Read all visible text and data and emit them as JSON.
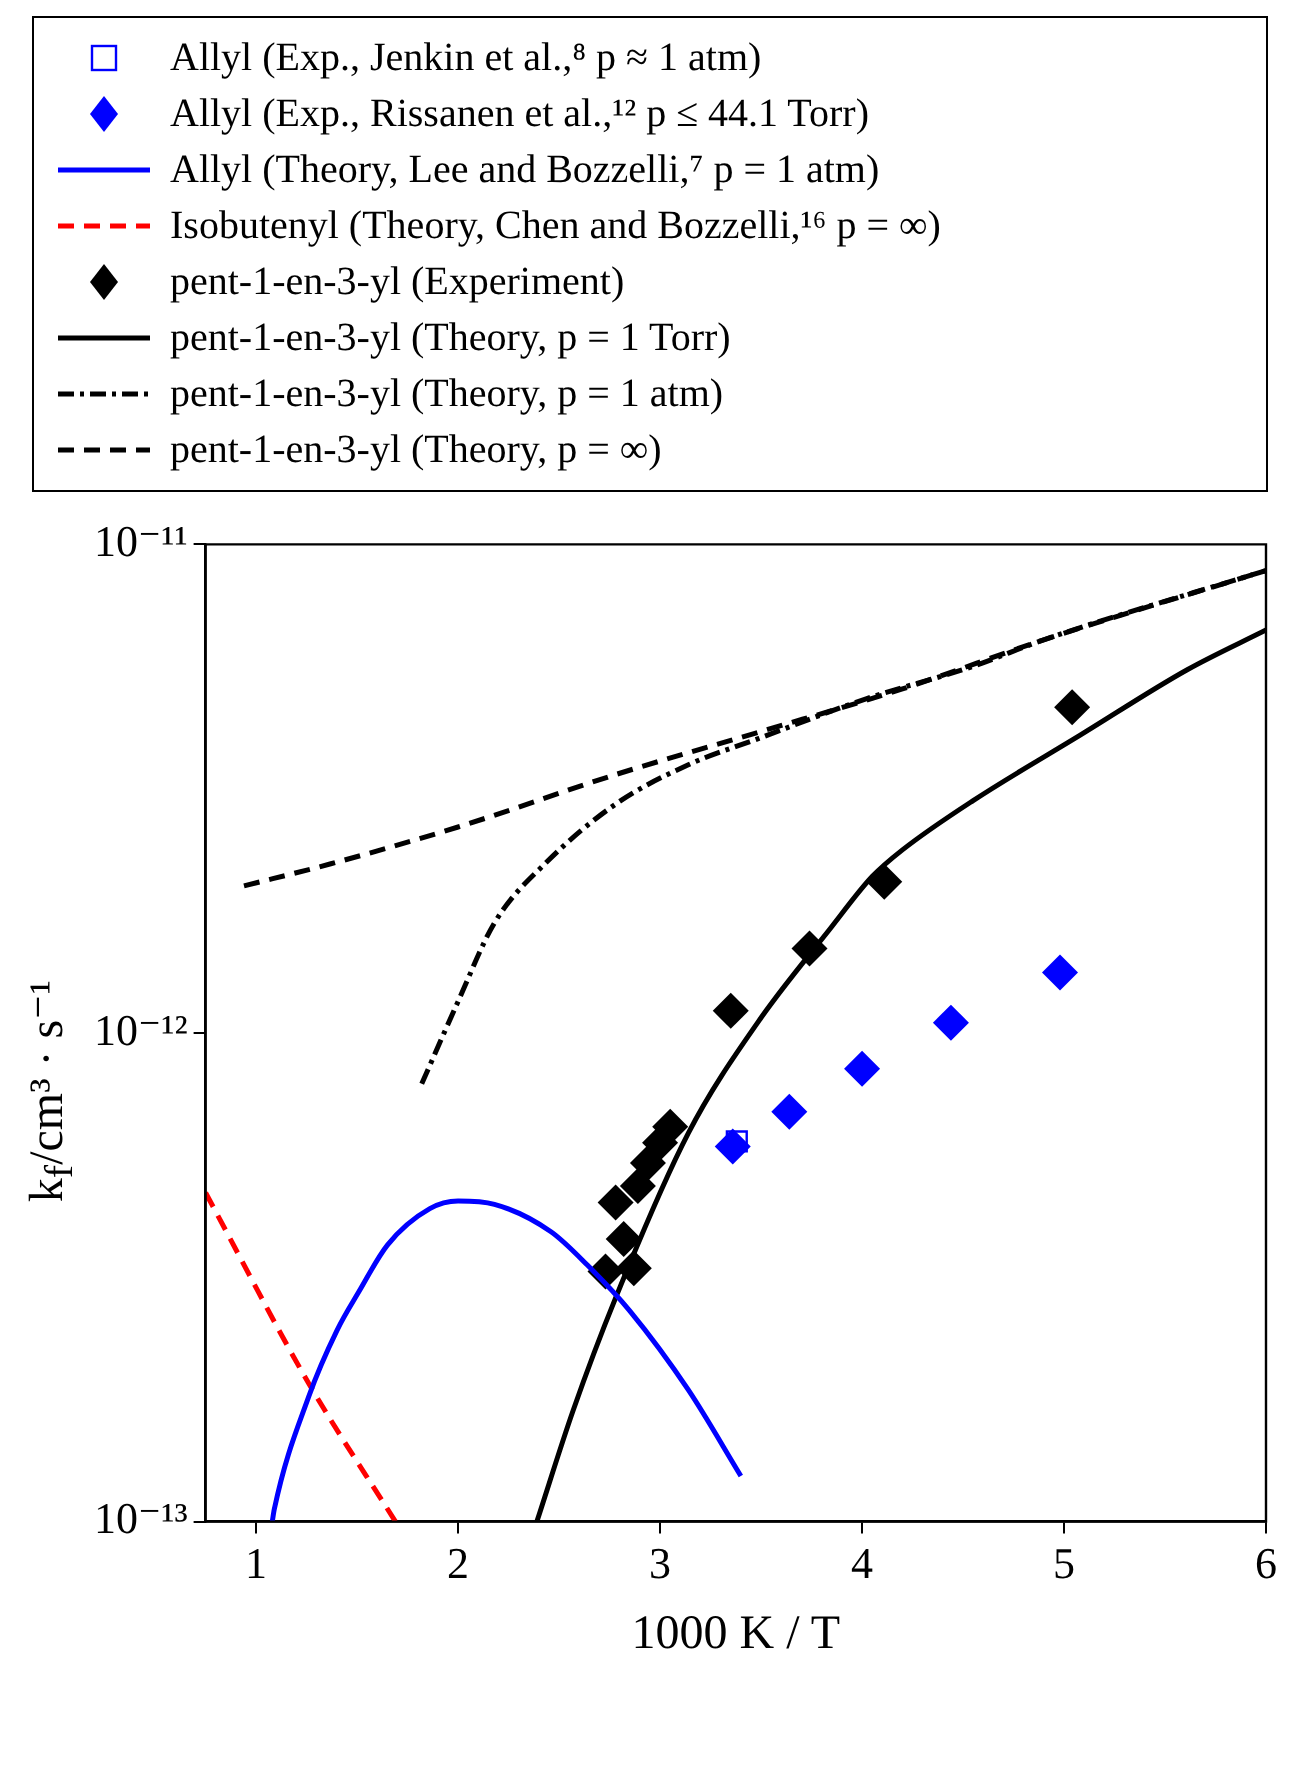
{
  "chart_data": {
    "type": "line",
    "xlabel": "1000 K / T",
    "ylabel": "k$_{f}$/cm³ · s⁻¹",
    "xlim": [
      0.75,
      6
    ],
    "xticks": [
      1,
      2,
      3,
      4,
      5,
      6
    ],
    "ylim": [
      1e-13,
      1e-11
    ],
    "yticks": [
      {
        "value": 1e-13,
        "label": "10⁻¹³"
      },
      {
        "value": 1e-12,
        "label": "10⁻¹²"
      },
      {
        "value": 1e-11,
        "label": "10⁻¹¹"
      }
    ],
    "log": "y",
    "grid": false,
    "legend": "top",
    "series": [
      {
        "name": "Allyl (Exp., Jenkin et al.,⁸ p ≈ 1 atm)",
        "type": "scatter",
        "marker": "square",
        "color": "#0000ff",
        "x": [
          3.38
        ],
        "values": [
          6e-13
        ]
      },
      {
        "name": "Allyl (Exp., Rissanen et al.,¹² p ≤ 44.1 Torr)",
        "type": "scatter",
        "marker": "diamond",
        "color": "#0000ff",
        "x": [
          3.36,
          3.64,
          4.0,
          4.44,
          4.98
        ],
        "values": [
          5.86e-13,
          6.9e-13,
          8.45e-13,
          1.05e-12,
          1.33e-12
        ]
      },
      {
        "name": "Allyl (Theory, Lee and Bozzelli,⁷ p = 1 atm)",
        "line_style": "solid",
        "color": "#0000ff",
        "x": [
          1.08,
          1.09,
          1.26,
          1.4,
          1.51,
          1.65,
          1.86,
          2.0,
          2.18,
          2.46,
          2.64,
          2.85,
          3.14,
          3.4
        ],
        "values": [
          1e-13,
          1.06e-13,
          1.8e-13,
          2.46e-13,
          2.96e-13,
          3.68e-13,
          4.37e-13,
          4.53e-13,
          4.46e-13,
          3.92e-13,
          3.35e-13,
          2.7e-13,
          1.86e-13,
          1.24e-13
        ]
      },
      {
        "name": "Isobutenyl (Theory, Chen and Bozzelli,¹⁶ p = ∞)",
        "line_style": "dashed",
        "color": "#ff0000",
        "x": [
          0.75,
          1.26,
          1.69
        ],
        "values": [
          4.71e-13,
          1.92e-13,
          1e-13
        ]
      },
      {
        "name": "pent-1-en-3-yl (Experiment)",
        "type": "scatter",
        "marker": "diamond",
        "color": "#000000",
        "x": [
          2.73,
          2.78,
          2.82,
          2.87,
          2.89,
          2.94,
          3.0,
          3.05,
          3.35,
          3.74,
          4.11,
          5.04
        ],
        "values": [
          3.25e-13,
          4.5e-13,
          3.79e-13,
          3.3e-13,
          4.86e-13,
          5.42e-13,
          5.96e-13,
          6.43e-13,
          1.11e-12,
          1.49e-12,
          2.04e-12,
          4.64e-12
        ]
      },
      {
        "name": "pent-1-en-3-yl (Theory, p = 1 Torr)",
        "line_style": "solid",
        "color": "#000000",
        "x": [
          2.39,
          2.57,
          2.78,
          3.14,
          3.49,
          3.84,
          4.05,
          4.2,
          4.55,
          5.08,
          5.61,
          6.0
        ],
        "values": [
          1e-13,
          1.69e-13,
          2.87e-13,
          6.24e-13,
          1.06e-12,
          1.63e-12,
          2.09e-12,
          2.37e-12,
          2.99e-12,
          4.07e-12,
          5.54e-12,
          6.68e-12
        ]
      },
      {
        "name": "pent-1-en-3-yl (Theory, p = 1 atm)",
        "line_style": "dashdot",
        "color": "#000000",
        "x": [
          1.82,
          2.0,
          2.18,
          2.43,
          2.78,
          3.14,
          3.49,
          4.02,
          4.55,
          4.9,
          6.0
        ],
        "values": [
          7.87e-13,
          1.16e-12,
          1.68e-12,
          2.22e-12,
          2.94e-12,
          3.54e-12,
          4.01e-12,
          4.83e-12,
          5.63e-12,
          6.38e-12,
          8.84e-12
        ]
      },
      {
        "name": "pent-1-en-3-yl (Theory, p = ∞)",
        "line_style": "dashed",
        "color": "#000000",
        "x": [
          0.94,
          1.37,
          2.0,
          2.78,
          3.49,
          4.2,
          4.9,
          6.0
        ],
        "values": [
          2e-12,
          2.22e-12,
          2.64e-12,
          3.38e-12,
          4.13e-12,
          5.06e-12,
          6.38e-12,
          8.84e-12
        ]
      }
    ]
  }
}
